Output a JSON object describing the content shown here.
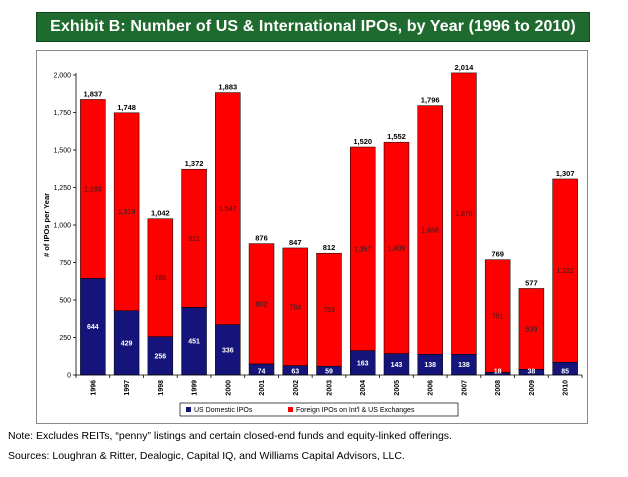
{
  "title": "Exhibit B: Number of US & International IPOs, by Year (1996 to 2010)",
  "chart_data": {
    "type": "bar",
    "stacked": true,
    "categories": [
      "1996",
      "1997",
      "1998",
      "1999",
      "2000",
      "2001",
      "2002",
      "2003",
      "2004",
      "2005",
      "2006",
      "2007",
      "2008",
      "2009",
      "2010"
    ],
    "series": [
      {
        "name": "US Domestic IPOs",
        "color": "#14147a",
        "values": [
          644,
          429,
          256,
          451,
          336,
          74,
          63,
          59,
          163,
          143,
          138,
          138,
          18,
          38,
          85
        ]
      },
      {
        "name": "Foreign IPOs on Int'l & US Exchanges",
        "color": "#ff0000",
        "values": [
          1193,
          1319,
          786,
          921,
          1547,
          802,
          784,
          753,
          1357,
          1409,
          1658,
          1876,
          751,
          539,
          1222
        ]
      }
    ],
    "totals": [
      1837,
      1748,
      1042,
      1372,
      1883,
      876,
      847,
      812,
      1520,
      1552,
      1796,
      2014,
      769,
      577,
      1307
    ],
    "ylabel": "# of IPOs per Year",
    "xlabel": "",
    "ylim": [
      0,
      2000
    ],
    "yticks": [
      0,
      250,
      500,
      750,
      1000,
      1250,
      1500,
      1750,
      2000
    ],
    "ytick_labels": [
      "0",
      "250",
      "500",
      "750",
      "1,000",
      "1,250",
      "1,500",
      "1,750",
      "2,000"
    ],
    "legend_position": "bottom",
    "grid": false
  },
  "notes": {
    "note": "Note: Excludes REITs, “penny” listings and certain closed-end funds and equity-linked offerings.",
    "sources": "Sources: Loughran & Ritter, Dealogic, Capital IQ, and Williams Capital Advisors, LLC."
  }
}
